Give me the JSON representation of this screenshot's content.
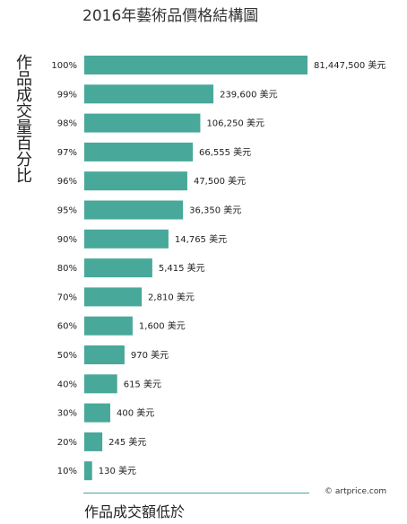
{
  "chart_data": {
    "type": "bar",
    "orientation": "horizontal",
    "title": "2016年藝術品價格結構圖",
    "ylabel": "作品成交量百分比",
    "xlabel": "作品成交額低於",
    "categories": [
      "100%",
      "99%",
      "98%",
      "97%",
      "96%",
      "95%",
      "90%",
      "80%",
      "70%",
      "60%",
      "50%",
      "40%",
      "30%",
      "20%",
      "10%"
    ],
    "values": [
      81447500,
      239600,
      106250,
      66555,
      47500,
      36350,
      14765,
      5415,
      2810,
      1600,
      970,
      615,
      400,
      245,
      130
    ],
    "value_labels": [
      "81,447,500 美元",
      "239,600 美元",
      "106,250 美元",
      "66,555 美元",
      "47,500 美元",
      "36,350 美元",
      "14,765 美元",
      "5,415 美元",
      "2,810 美元",
      "1,600 美元",
      "970 美元",
      "615 美元",
      "400 美元",
      "245 美元",
      "130 美元"
    ],
    "x_scale": "log",
    "bar_color": "#48a89a",
    "grid": false,
    "legend": "none",
    "credit": "© artprice.com"
  }
}
